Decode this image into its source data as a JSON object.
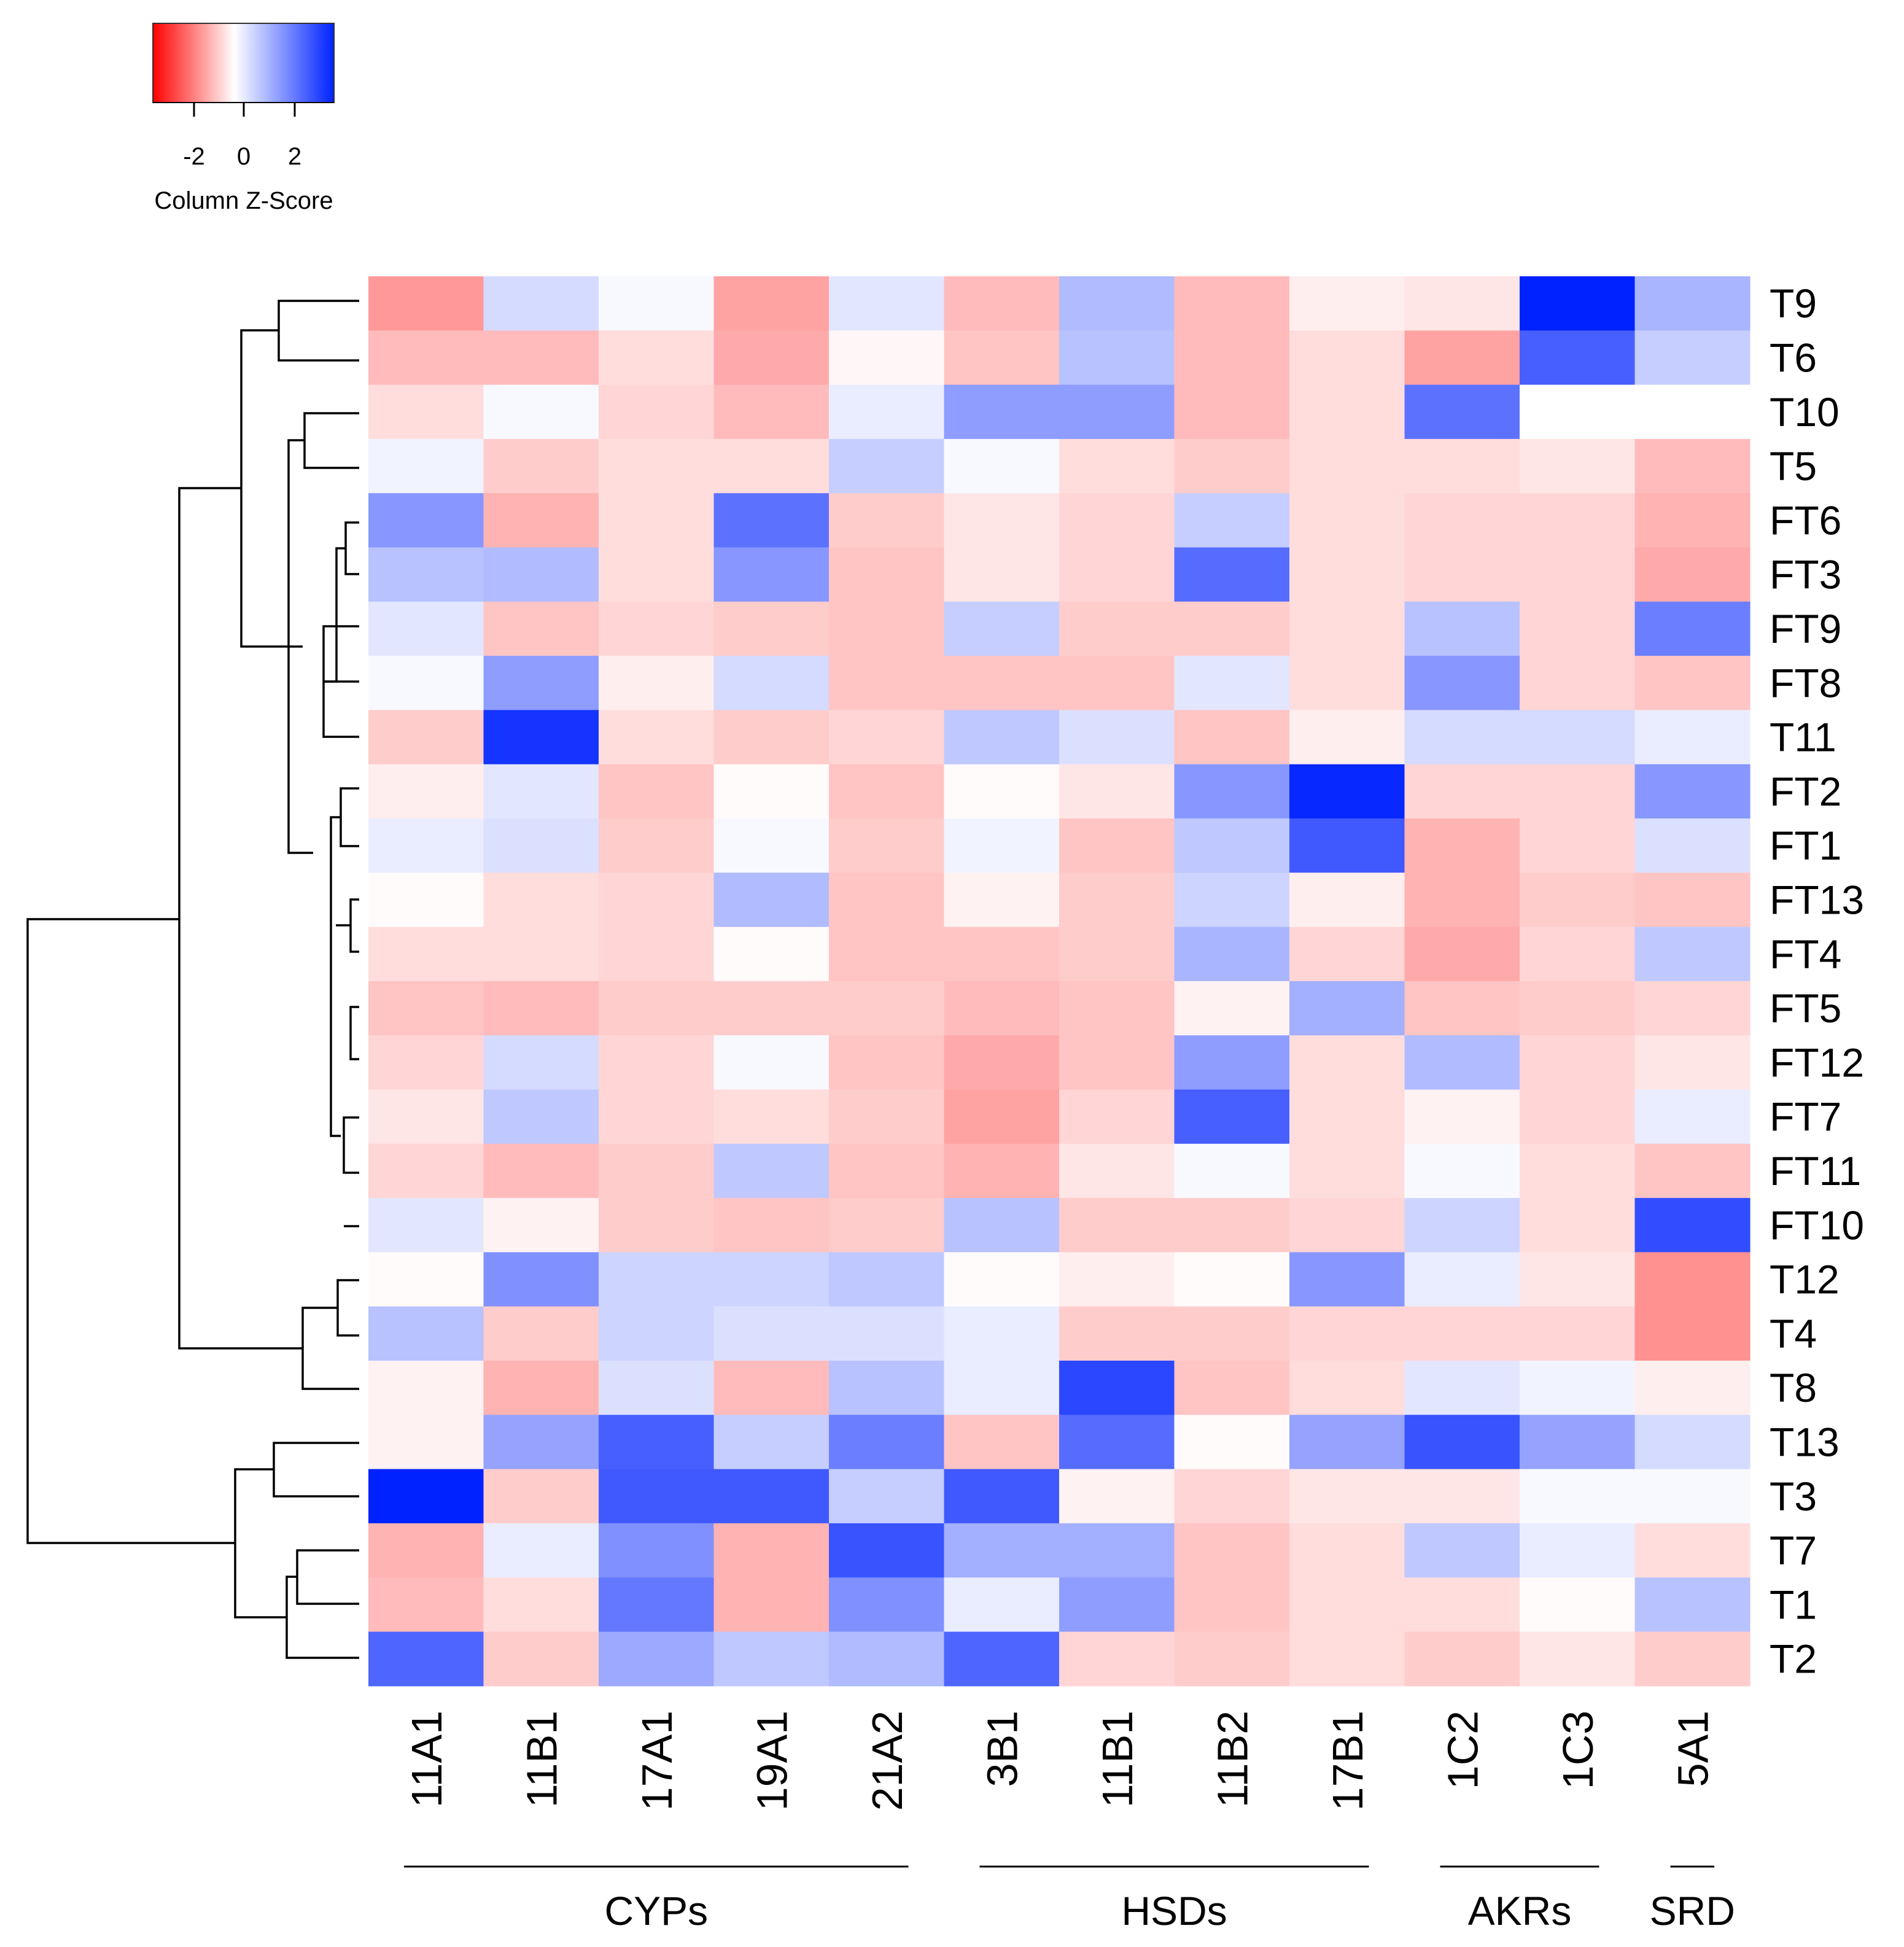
{
  "chart_data": {
    "type": "heatmap",
    "legend": {
      "title": "Column Z-Score",
      "ticks": [
        "-2",
        "0",
        "2"
      ],
      "tick_values": [
        -2,
        0,
        2
      ],
      "range": [
        -3,
        3.6
      ],
      "colors": {
        "low": "#ff0000",
        "mid": "#ffffff",
        "high": "#0022ff"
      }
    },
    "columns": [
      "11A1",
      "11B1",
      "17A1",
      "19A1",
      "21A2",
      "3B1",
      "11B1",
      "11B2",
      "17B1",
      "1C2",
      "1C3",
      "5A1"
    ],
    "rows": [
      "T9",
      "T6",
      "T10",
      "T5",
      "FT6",
      "FT3",
      "FT9",
      "FT8",
      "T11",
      "FT2",
      "FT1",
      "FT13",
      "FT4",
      "FT5",
      "FT12",
      "FT7",
      "FT11",
      "FT10",
      "T12",
      "T4",
      "T8",
      "T13",
      "T3",
      "T7",
      "T1",
      "T2"
    ],
    "column_groups": [
      {
        "label": "CYPs",
        "columns": [
          0,
          4
        ]
      },
      {
        "label": "HSDs",
        "columns": [
          5,
          8
        ]
      },
      {
        "label": "AKRs",
        "columns": [
          9,
          10
        ]
      },
      {
        "label": "SRD",
        "columns": [
          11,
          11
        ]
      }
    ],
    "values": [
      [
        -1.2,
        0.6,
        0.1,
        -1.1,
        0.4,
        -0.8,
        1.1,
        -0.8,
        -0.2,
        -0.3,
        3.6,
        1.2
      ],
      [
        -0.8,
        -0.8,
        -0.4,
        -1.0,
        -0.1,
        -0.7,
        1.0,
        -0.8,
        -0.4,
        -1.1,
        2.6,
        0.8
      ],
      [
        -0.4,
        0.1,
        -0.5,
        -0.8,
        0.3,
        1.6,
        1.6,
        -0.8,
        -0.4,
        2.3,
        0.0,
        0.0
      ],
      [
        0.2,
        -0.6,
        -0.4,
        -0.4,
        0.8,
        0.1,
        -0.4,
        -0.6,
        -0.4,
        -0.4,
        -0.3,
        -0.8
      ],
      [
        1.7,
        -0.9,
        -0.4,
        2.3,
        -0.6,
        -0.3,
        -0.5,
        0.8,
        -0.4,
        -0.5,
        -0.5,
        -0.9
      ],
      [
        1.0,
        1.1,
        -0.4,
        1.7,
        -0.7,
        -0.3,
        -0.5,
        2.4,
        -0.4,
        -0.5,
        -0.5,
        -1.0
      ],
      [
        0.4,
        -0.7,
        -0.5,
        -0.6,
        -0.7,
        0.8,
        -0.6,
        -0.6,
        -0.4,
        1.0,
        -0.5,
        2.1
      ],
      [
        0.1,
        1.6,
        -0.2,
        0.6,
        -0.7,
        -0.7,
        -0.7,
        0.4,
        -0.4,
        1.7,
        -0.5,
        -0.7
      ],
      [
        -0.6,
        3.3,
        -0.4,
        -0.6,
        -0.5,
        0.9,
        0.5,
        -0.7,
        -0.2,
        0.6,
        0.6,
        0.3
      ],
      [
        -0.2,
        0.4,
        -0.7,
        -0.05,
        -0.7,
        -0.05,
        -0.3,
        1.7,
        3.5,
        -0.5,
        -0.5,
        1.7
      ],
      [
        0.3,
        0.5,
        -0.6,
        0.1,
        -0.6,
        0.2,
        -0.7,
        0.9,
        2.7,
        -0.9,
        -0.5,
        0.5
      ],
      [
        -0.05,
        -0.4,
        -0.5,
        1.1,
        -0.7,
        -0.15,
        -0.6,
        0.7,
        -0.2,
        -0.9,
        -0.6,
        -0.7
      ],
      [
        -0.4,
        -0.4,
        -0.5,
        -0.05,
        -0.7,
        -0.7,
        -0.6,
        1.2,
        -0.5,
        -1.0,
        -0.5,
        0.9
      ],
      [
        -0.7,
        -0.8,
        -0.6,
        -0.6,
        -0.6,
        -0.8,
        -0.7,
        -0.15,
        1.3,
        -0.7,
        -0.6,
        -0.5
      ],
      [
        -0.5,
        0.6,
        -0.5,
        0.1,
        -0.7,
        -1.0,
        -0.7,
        1.6,
        -0.4,
        1.1,
        -0.5,
        -0.3
      ],
      [
        -0.3,
        0.9,
        -0.5,
        -0.4,
        -0.6,
        -1.1,
        -0.5,
        2.6,
        -0.4,
        -0.15,
        -0.5,
        0.3
      ],
      [
        -0.5,
        -0.8,
        -0.6,
        0.9,
        -0.7,
        -0.9,
        -0.3,
        0.1,
        -0.4,
        0.1,
        -0.4,
        -0.7
      ],
      [
        0.4,
        -0.15,
        -0.6,
        -0.7,
        -0.6,
        1.0,
        -0.6,
        -0.6,
        -0.5,
        0.7,
        -0.4,
        2.9
      ],
      [
        -0.05,
        1.8,
        0.7,
        0.7,
        0.9,
        -0.05,
        -0.2,
        -0.05,
        1.7,
        0.3,
        -0.3,
        -1.3
      ],
      [
        1.0,
        -0.6,
        0.7,
        0.5,
        0.5,
        0.3,
        -0.6,
        -0.6,
        -0.5,
        -0.5,
        -0.5,
        -1.3
      ],
      [
        -0.15,
        -0.9,
        0.5,
        -0.8,
        1.0,
        0.3,
        3.0,
        -0.7,
        -0.4,
        0.4,
        0.2,
        -0.2
      ],
      [
        -0.15,
        1.5,
        2.6,
        0.8,
        2.1,
        -0.7,
        2.4,
        -0.05,
        1.5,
        2.8,
        1.5,
        0.6
      ],
      [
        3.6,
        -0.6,
        2.7,
        2.7,
        0.8,
        2.7,
        -0.15,
        -0.5,
        -0.3,
        -0.3,
        0.1,
        0.1
      ],
      [
        -0.9,
        0.3,
        1.8,
        -0.9,
        2.8,
        1.3,
        1.3,
        -0.7,
        -0.4,
        0.9,
        0.3,
        -0.4
      ],
      [
        -0.8,
        -0.4,
        2.2,
        -0.9,
        1.8,
        0.3,
        1.6,
        -0.7,
        -0.4,
        -0.4,
        -0.05,
        1.0
      ],
      [
        2.5,
        -0.6,
        1.4,
        0.9,
        1.1,
        2.5,
        -0.5,
        -0.6,
        -0.4,
        -0.6,
        -0.3,
        -0.6
      ]
    ]
  }
}
